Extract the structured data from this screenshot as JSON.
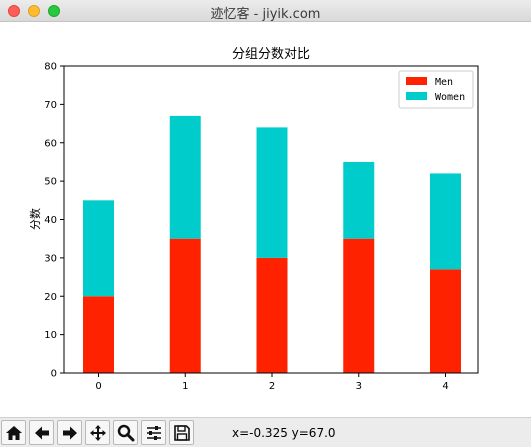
{
  "window": {
    "title": "迹忆客 - jiyik.com"
  },
  "toolbar": {
    "buttons": [
      {
        "name": "home-icon"
      },
      {
        "name": "back-arrow-icon"
      },
      {
        "name": "forward-arrow-icon"
      },
      {
        "name": "pan-icon"
      },
      {
        "name": "zoom-icon"
      },
      {
        "name": "subplots-config-icon"
      },
      {
        "name": "save-icon"
      }
    ],
    "coordinates": "x=-0.325 y=67.0"
  },
  "chart_data": {
    "type": "bar",
    "stacked": true,
    "title": "分组分数对比",
    "xlabel": "",
    "ylabel": "分数",
    "categories": [
      "0",
      "1",
      "2",
      "3",
      "4"
    ],
    "ylim": [
      0,
      80
    ],
    "yticks": [
      0,
      10,
      20,
      30,
      40,
      50,
      60,
      70,
      80
    ],
    "grid": false,
    "legend_position": "top-right",
    "series": [
      {
        "name": "Men",
        "values": [
          20,
          35,
          30,
          35,
          27
        ],
        "color": "#ff2200"
      },
      {
        "name": "Women",
        "values": [
          25,
          32,
          34,
          20,
          25
        ],
        "color": "#00cccc"
      }
    ]
  }
}
